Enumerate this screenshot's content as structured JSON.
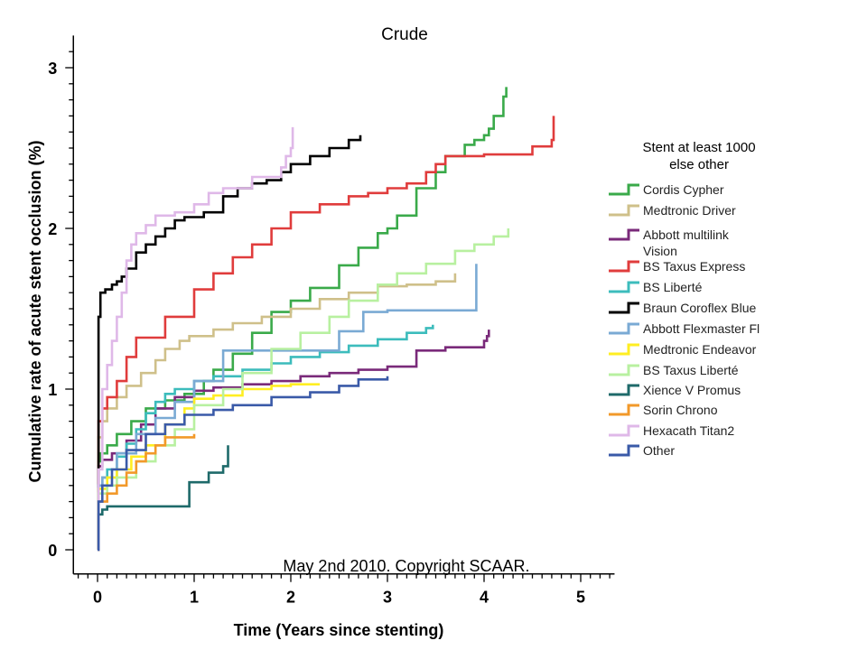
{
  "chart_data": {
    "type": "line",
    "step": true,
    "title": "Crude",
    "xlabel": "Time (Years since stenting)",
    "ylabel": "Cumulative rate of acute stent occlusion (%)",
    "xlim": [
      -0.25,
      5.35
    ],
    "ylim": [
      -0.15,
      3.2
    ],
    "x_ticks": [
      0,
      1,
      2,
      3,
      4,
      5
    ],
    "y_ticks": [
      0,
      1,
      2,
      3
    ],
    "annotation": "May 2nd 2010. Copyright SCAAR.",
    "legend_title": [
      "Stent at least 1000",
      "else other"
    ],
    "series": [
      {
        "name": "Cordis Cypher",
        "color": "#3aaa4a",
        "x": [
          0,
          0.01,
          0.03,
          0.1,
          0.2,
          0.35,
          0.5,
          0.7,
          0.9,
          1.1,
          1.2,
          1.4,
          1.6,
          1.8,
          2.0,
          2.2,
          2.5,
          2.7,
          2.9,
          3.0,
          3.1,
          3.3,
          3.5,
          3.6,
          3.8,
          3.9,
          4.0,
          4.05,
          4.1,
          4.2,
          4.23
        ],
        "y": [
          0,
          0.55,
          0.6,
          0.65,
          0.72,
          0.8,
          0.88,
          0.93,
          0.97,
          1.05,
          1.12,
          1.22,
          1.35,
          1.48,
          1.55,
          1.63,
          1.77,
          1.88,
          1.97,
          2.0,
          2.08,
          2.25,
          2.35,
          2.45,
          2.52,
          2.55,
          2.58,
          2.62,
          2.7,
          2.82,
          2.88
        ]
      },
      {
        "name": "Medtronic Driver",
        "color": "#cfc08a",
        "x": [
          0,
          0.01,
          0.05,
          0.1,
          0.2,
          0.3,
          0.45,
          0.6,
          0.7,
          0.85,
          0.95,
          1.2,
          1.4,
          1.7,
          2.0,
          2.3,
          2.6,
          2.9,
          3.2,
          3.5,
          3.7
        ],
        "y": [
          0,
          0.7,
          0.8,
          0.88,
          0.95,
          1.02,
          1.1,
          1.18,
          1.25,
          1.3,
          1.33,
          1.37,
          1.41,
          1.45,
          1.5,
          1.56,
          1.6,
          1.64,
          1.65,
          1.67,
          1.72
        ]
      },
      {
        "name": "Abbott multilink Vision",
        "color": "#7a2a7a",
        "x": [
          0,
          0.01,
          0.05,
          0.15,
          0.3,
          0.45,
          0.6,
          0.8,
          1.0,
          1.2,
          1.5,
          1.8,
          2.1,
          2.4,
          2.7,
          3.0,
          3.3,
          3.6,
          3.9,
          4.0,
          4.03,
          4.05
        ],
        "y": [
          0,
          0.52,
          0.56,
          0.6,
          0.68,
          0.78,
          0.88,
          0.95,
          0.99,
          1.01,
          1.03,
          1.05,
          1.08,
          1.1,
          1.12,
          1.14,
          1.24,
          1.26,
          1.26,
          1.3,
          1.33,
          1.37
        ]
      },
      {
        "name": "BS Taxus Express",
        "color": "#e03c3c",
        "x": [
          0,
          0.01,
          0.05,
          0.1,
          0.2,
          0.3,
          0.4,
          0.7,
          1.0,
          1.2,
          1.4,
          1.6,
          1.8,
          2.0,
          2.3,
          2.6,
          2.8,
          3.0,
          3.2,
          3.4,
          3.5,
          3.6,
          4.0,
          4.5,
          4.7,
          4.72
        ],
        "y": [
          0,
          0.8,
          0.88,
          0.95,
          1.05,
          1.2,
          1.32,
          1.45,
          1.62,
          1.72,
          1.82,
          1.9,
          2.0,
          2.1,
          2.15,
          2.2,
          2.22,
          2.25,
          2.28,
          2.35,
          2.4,
          2.45,
          2.46,
          2.51,
          2.55,
          2.7
        ]
      },
      {
        "name": "BS Liberté",
        "color": "#3cbcbc",
        "x": [
          0,
          0.01,
          0.05,
          0.1,
          0.2,
          0.3,
          0.4,
          0.5,
          0.6,
          0.7,
          0.8,
          1.0,
          1.2,
          1.5,
          1.8,
          2.0,
          2.3,
          2.6,
          2.9,
          3.2,
          3.4,
          3.47
        ],
        "y": [
          0,
          0.4,
          0.45,
          0.5,
          0.58,
          0.66,
          0.75,
          0.85,
          0.92,
          0.97,
          1.0,
          1.05,
          1.08,
          1.12,
          1.16,
          1.2,
          1.23,
          1.27,
          1.31,
          1.35,
          1.38,
          1.4
        ]
      },
      {
        "name": "Braun Coroflex Blue",
        "color": "#000000",
        "x": [
          0,
          0.01,
          0.03,
          0.08,
          0.15,
          0.2,
          0.25,
          0.3,
          0.4,
          0.5,
          0.6,
          0.7,
          0.8,
          0.9,
          1.1,
          1.3,
          1.45,
          1.6,
          1.75,
          1.9,
          2.0,
          2.2,
          2.4,
          2.6,
          2.72
        ],
        "y": [
          0,
          1.45,
          1.6,
          1.62,
          1.65,
          1.67,
          1.7,
          1.75,
          1.85,
          1.9,
          1.95,
          2.0,
          2.05,
          2.07,
          2.1,
          2.2,
          2.25,
          2.28,
          2.3,
          2.35,
          2.4,
          2.45,
          2.5,
          2.55,
          2.58
        ]
      },
      {
        "name": "Abbott Flexmaster Fl",
        "color": "#7aaad4",
        "x": [
          0,
          0.01,
          0.05,
          0.2,
          0.4,
          0.6,
          0.8,
          1.0,
          1.3,
          1.8,
          2.5,
          2.75,
          3.0,
          3.9,
          3.92
        ],
        "y": [
          0,
          0.4,
          0.45,
          0.6,
          0.72,
          0.82,
          0.92,
          1.05,
          1.24,
          1.24,
          1.36,
          1.48,
          1.49,
          1.49,
          1.78
        ]
      },
      {
        "name": "Medtronic Endeavor",
        "color": "#ffee22",
        "x": [
          0,
          0.01,
          0.1,
          0.2,
          0.35,
          0.5,
          0.7,
          0.9,
          1.0,
          1.2,
          1.5,
          1.8,
          2.0,
          2.3
        ],
        "y": [
          0,
          0.38,
          0.45,
          0.5,
          0.58,
          0.65,
          0.78,
          0.88,
          0.94,
          0.96,
          1.0,
          1.02,
          1.03,
          1.03
        ]
      },
      {
        "name": "BS Taxus Liberté",
        "color": "#b8f0a0",
        "x": [
          0,
          0.01,
          0.1,
          0.2,
          0.4,
          0.6,
          0.8,
          1.0,
          1.3,
          1.5,
          1.8,
          2.1,
          2.4,
          2.6,
          2.9,
          3.1,
          3.4,
          3.7,
          3.9,
          4.1,
          4.25
        ],
        "y": [
          0,
          0.35,
          0.4,
          0.45,
          0.55,
          0.65,
          0.75,
          0.9,
          1.0,
          1.1,
          1.25,
          1.35,
          1.45,
          1.55,
          1.65,
          1.72,
          1.78,
          1.86,
          1.9,
          1.95,
          2.0
        ]
      },
      {
        "name": "Xience V Promus",
        "color": "#1e6a6a",
        "x": [
          0,
          0.01,
          0.05,
          0.1,
          0.3,
          0.6,
          0.9,
          0.95,
          1.15,
          1.3,
          1.35
        ],
        "y": [
          0,
          0.22,
          0.25,
          0.27,
          0.27,
          0.27,
          0.27,
          0.42,
          0.48,
          0.52,
          0.65
        ]
      },
      {
        "name": "Sorin Chrono",
        "color": "#f2992a",
        "x": [
          0,
          0.01,
          0.1,
          0.2,
          0.3,
          0.4,
          0.5,
          0.6,
          0.7,
          0.95,
          1.0
        ],
        "y": [
          0,
          0.3,
          0.35,
          0.4,
          0.48,
          0.55,
          0.6,
          0.65,
          0.7,
          0.7,
          0.72
        ]
      },
      {
        "name": "Hexacath Titan2",
        "color": "#dfb8e8",
        "x": [
          0,
          0.01,
          0.05,
          0.1,
          0.15,
          0.2,
          0.25,
          0.3,
          0.35,
          0.4,
          0.5,
          0.6,
          0.8,
          1.0,
          1.15,
          1.3,
          1.6,
          1.9,
          1.95,
          2.0,
          2.02
        ],
        "y": [
          0,
          0.5,
          1.0,
          1.15,
          1.3,
          1.45,
          1.6,
          1.8,
          1.9,
          1.97,
          2.02,
          2.08,
          2.1,
          2.15,
          2.22,
          2.25,
          2.32,
          2.38,
          2.45,
          2.5,
          2.63
        ]
      },
      {
        "name": "Other",
        "color": "#3a5aa8",
        "x": [
          0,
          0.01,
          0.05,
          0.15,
          0.3,
          0.5,
          0.7,
          0.9,
          1.2,
          1.4,
          1.8,
          2.2,
          2.5,
          2.7,
          3.0
        ],
        "y": [
          0,
          0.3,
          0.4,
          0.5,
          0.62,
          0.72,
          0.78,
          0.84,
          0.87,
          0.9,
          0.95,
          0.98,
          1.02,
          1.06,
          1.08
        ]
      }
    ]
  }
}
